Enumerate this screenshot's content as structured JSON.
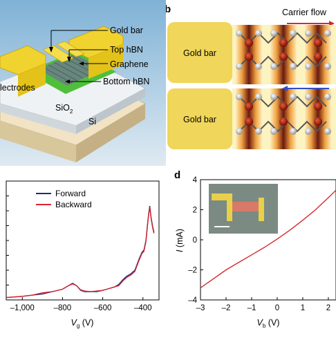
{
  "panel_a": {
    "labels": {
      "gold_bar": "Gold bar",
      "top_hbn": "Top hBN",
      "graphene": "Graphene",
      "electrodes": "lectrodes",
      "bottom_hbn": "Bottom hBN",
      "sio2": "SiO",
      "sio2_sub": "2",
      "si": "Si"
    }
  },
  "panel_b": {
    "letter": "b",
    "carrier_flow": "Carrier flow",
    "gold_bar_top": "Gold bar",
    "gold_bar_bottom": "Gold bar",
    "colors": {
      "gold": "#f0d65a",
      "arrow_red": "#d9262c",
      "arrow_blue": "#2d4fc4"
    }
  },
  "panel_c": {
    "legend": [
      "Forward",
      "Backward"
    ],
    "colors": {
      "forward": "#1f2a7a",
      "backward": "#d7262e"
    }
  },
  "panel_d": {
    "letter": "d",
    "colors": {
      "line": "#d7262e"
    }
  },
  "chart_data": [
    {
      "type": "line",
      "panel": "c",
      "xlabel": "V_g (V)",
      "xlabel_main": "V",
      "xlabel_sub": "g",
      "xlabel_unit": " (V)",
      "xlim": [
        -1080,
        -320
      ],
      "ylim": [
        0,
        1
      ],
      "xticks": [
        -1000,
        -800,
        -600,
        -400
      ],
      "xtick_labels": [
        "–1,000",
        "–800",
        "–600",
        "–400"
      ],
      "legend_position": "top-left",
      "series": [
        {
          "name": "Forward",
          "x": [
            -1080,
            -1000,
            -950,
            -900,
            -850,
            -800,
            -770,
            -750,
            -730,
            -710,
            -690,
            -660,
            -630,
            -600,
            -580,
            -560,
            -540,
            -520,
            -500,
            -480,
            -460,
            -440,
            -420,
            -405,
            -395,
            -385,
            -378,
            -372,
            -366,
            -360,
            -352,
            -345
          ],
          "y": [
            0.02,
            0.03,
            0.04,
            0.05,
            0.07,
            0.09,
            0.12,
            0.14,
            0.12,
            0.08,
            0.07,
            0.07,
            0.07,
            0.08,
            0.09,
            0.1,
            0.11,
            0.13,
            0.17,
            0.2,
            0.22,
            0.25,
            0.34,
            0.4,
            0.42,
            0.5,
            0.62,
            0.72,
            0.79,
            0.7,
            0.62,
            0.57
          ]
        },
        {
          "name": "Backward",
          "x": [
            -1080,
            -1000,
            -950,
            -900,
            -850,
            -800,
            -770,
            -750,
            -730,
            -710,
            -690,
            -660,
            -630,
            -600,
            -580,
            -560,
            -540,
            -520,
            -500,
            -480,
            -460,
            -440,
            -420,
            -405,
            -395,
            -385,
            -378,
            -372,
            -366,
            -360,
            -352,
            -345
          ],
          "y": [
            0.02,
            0.03,
            0.04,
            0.06,
            0.07,
            0.09,
            0.12,
            0.135,
            0.12,
            0.085,
            0.075,
            0.07,
            0.075,
            0.08,
            0.09,
            0.1,
            0.11,
            0.12,
            0.16,
            0.19,
            0.21,
            0.24,
            0.33,
            0.39,
            0.41,
            0.49,
            0.61,
            0.71,
            0.78,
            0.69,
            0.61,
            0.56
          ]
        }
      ]
    },
    {
      "type": "line",
      "panel": "d",
      "ylabel": "I (mA)",
      "ylabel_main": "I",
      "ylabel_unit": " (mA)",
      "xlabel": "V_b (V)",
      "xlabel_main": "V",
      "xlabel_sub": "b",
      "xlabel_unit": " (V)",
      "xlim": [
        -3,
        2.3
      ],
      "ylim": [
        -4,
        4
      ],
      "xticks": [
        -3,
        -2,
        -1,
        0,
        1,
        2
      ],
      "xtick_labels": [
        "–3",
        "–2",
        "–1",
        "0",
        "1",
        "2"
      ],
      "yticks": [
        -4,
        -2,
        0,
        2,
        4
      ],
      "ytick_labels": [
        "–4",
        "–2",
        "0",
        "2",
        "4"
      ],
      "series": [
        {
          "x": [
            -3,
            -2.5,
            -2,
            -1.5,
            -1,
            -0.5,
            0,
            0.5,
            1,
            1.5,
            2,
            2.3
          ],
          "y": [
            -3.2,
            -2.6,
            -2.0,
            -1.5,
            -1.0,
            -0.5,
            0.05,
            0.65,
            1.3,
            2.0,
            2.8,
            3.3
          ]
        }
      ]
    }
  ]
}
